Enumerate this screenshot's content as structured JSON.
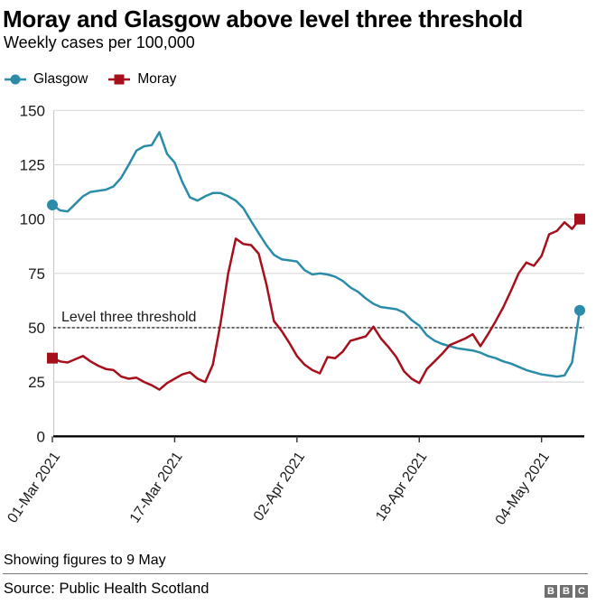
{
  "header": {
    "title": "Moray and Glasgow above level three threshold",
    "subtitle": "Weekly cases per 100,000"
  },
  "footer": {
    "note": "Showing figures to 9 May",
    "source": "Source: Public Health Scotland",
    "logo": [
      "B",
      "B",
      "C"
    ]
  },
  "chart_data": {
    "type": "line",
    "title": "Moray and Glasgow above level three threshold",
    "ylabel": "Weekly cases per 100,000",
    "ylim": [
      0,
      150
    ],
    "y_ticks": [
      0,
      25,
      50,
      75,
      100,
      125,
      150
    ],
    "grid": "horizontal",
    "legend_position": "top-left",
    "threshold": {
      "value": 50,
      "label": "Level three threshold",
      "style": "dashed"
    },
    "x_ticks": [
      {
        "day": 0,
        "label": "01-Mar 2021"
      },
      {
        "day": 16,
        "label": "17-Mar 2021"
      },
      {
        "day": 32,
        "label": "02-Apr 2021"
      },
      {
        "day": 48,
        "label": "18-Apr 2021"
      },
      {
        "day": 64,
        "label": "04-May 2021"
      }
    ],
    "x_range": "01-Mar 2021 to 9 May 2021, daily points",
    "series": [
      {
        "name": "Glasgow",
        "color": "#2a8ca8",
        "marker": "circle",
        "endpoint_values": {
          "first": 106.5,
          "last": 58
        },
        "values": [
          106.5,
          104,
          103.5,
          107,
          110.5,
          112.5,
          113,
          113.5,
          115,
          119,
          125,
          131.5,
          133.5,
          134,
          140,
          130,
          126,
          117,
          110,
          108.5,
          110.5,
          112,
          112,
          110.5,
          108.5,
          105,
          99,
          93.5,
          88,
          83.5,
          81.5,
          81,
          80.5,
          76.5,
          74.5,
          75,
          74.5,
          73.5,
          71.5,
          68.5,
          66.5,
          63.5,
          61,
          59.5,
          59,
          58.5,
          57,
          53.5,
          51,
          46.5,
          44,
          42.5,
          41.5,
          40.5,
          40,
          39.5,
          38.5,
          37,
          36,
          34.5,
          33.5,
          32,
          30.5,
          29.5,
          28.5,
          28,
          27.5,
          28,
          34,
          58
        ]
      },
      {
        "name": "Moray",
        "color": "#a6101c",
        "marker": "square",
        "endpoint_values": {
          "first": 36,
          "last": 100
        },
        "values": [
          36,
          34.5,
          34,
          35.5,
          37,
          34.5,
          32.5,
          31,
          30.5,
          27.5,
          26.5,
          27,
          25,
          23.5,
          21.5,
          24.5,
          26.5,
          28.5,
          29.5,
          26.5,
          25,
          33,
          52,
          75,
          91,
          88.5,
          88,
          84,
          70,
          53,
          48.5,
          43,
          37,
          33,
          30.5,
          29,
          36.5,
          36,
          39,
          44,
          45,
          46,
          50.5,
          45,
          41,
          36.5,
          30,
          26.5,
          24.5,
          31,
          34.5,
          38,
          42,
          43.5,
          45,
          47,
          41.5,
          47,
          53,
          59.5,
          67,
          75,
          80,
          78.5,
          83,
          93,
          94.5,
          98.5,
          95.5,
          100
        ]
      }
    ]
  }
}
